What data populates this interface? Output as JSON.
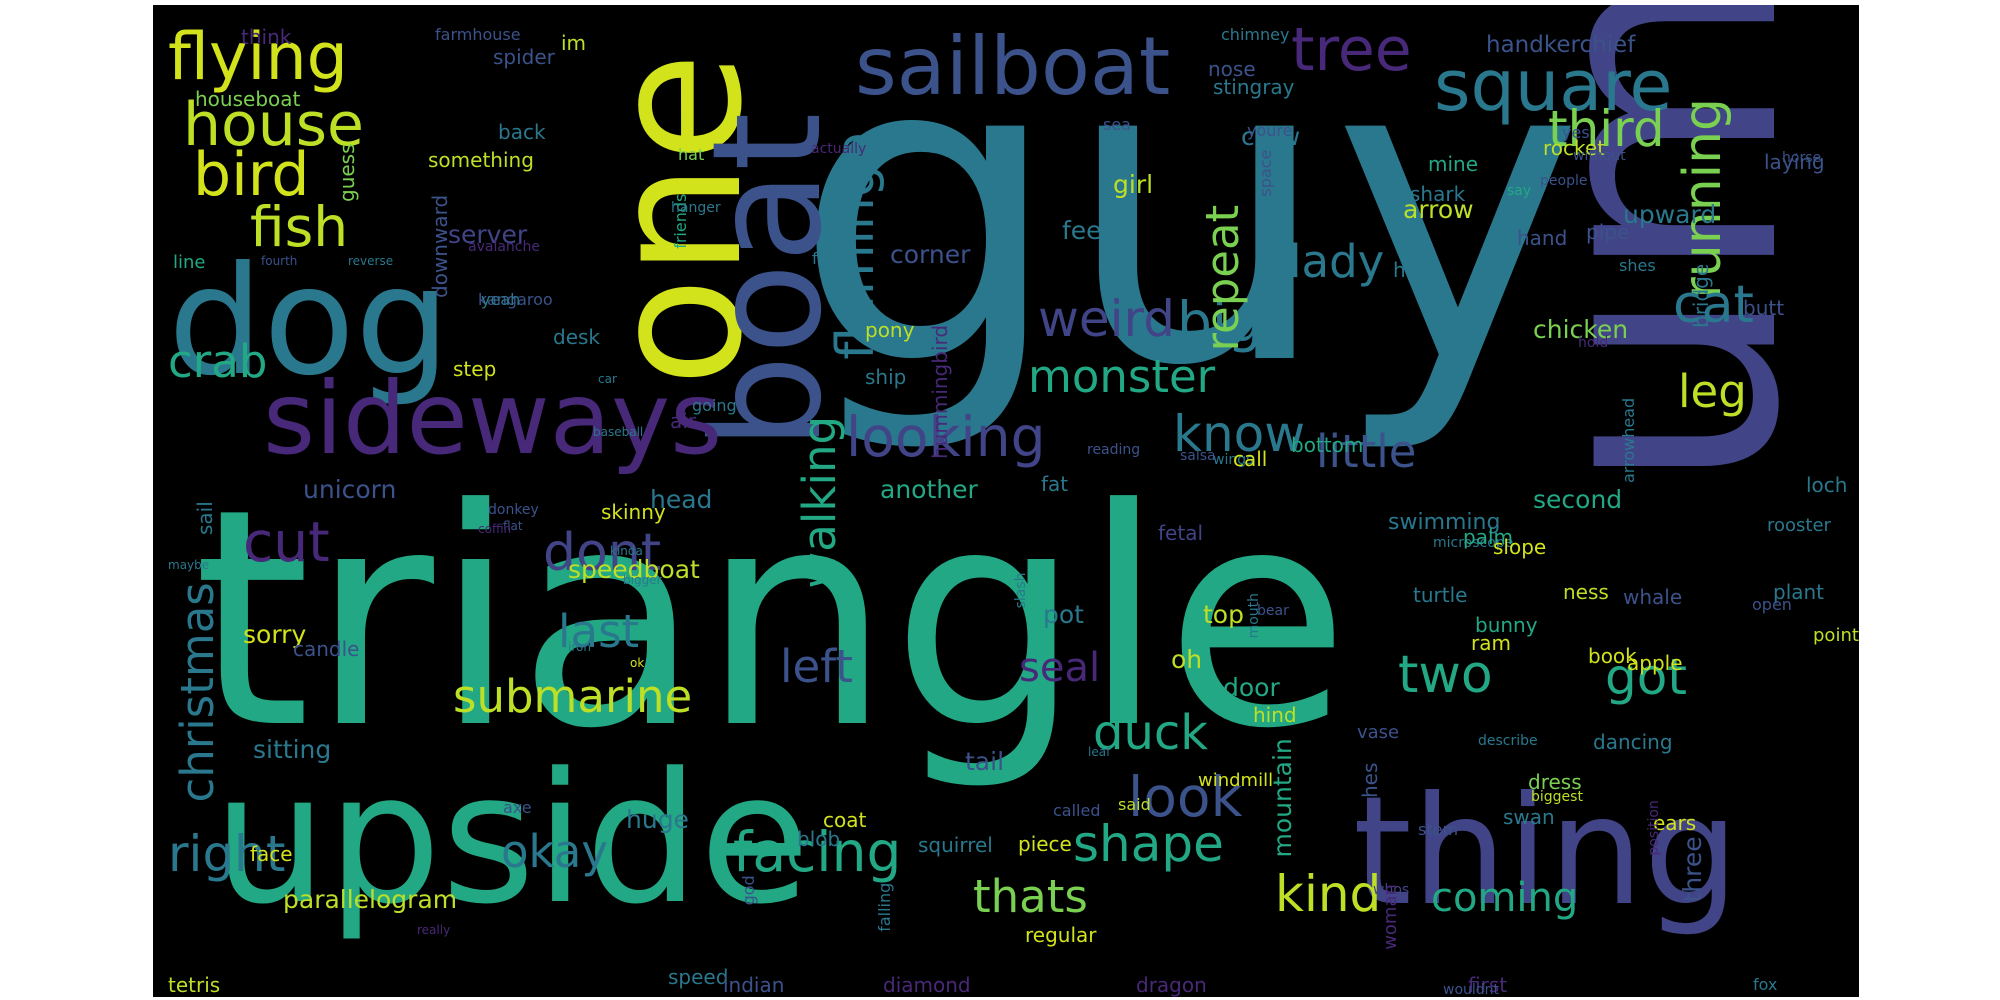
{
  "words": [
    {
      "text": "guy",
      "color": "#2a788e",
      "vertical": false
    },
    {
      "text": "triangle",
      "color": "#22a884",
      "vertical": false
    },
    {
      "text": "um",
      "color": "#414487",
      "vertical": true
    },
    {
      "text": "upside",
      "color": "#22a884",
      "vertical": false
    },
    {
      "text": "one",
      "color": "#d2e21b",
      "vertical": true
    },
    {
      "text": "thing",
      "color": "#414487",
      "vertical": false
    },
    {
      "text": "dog",
      "color": "#2a788e",
      "vertical": false
    },
    {
      "text": "boat",
      "color": "#3b528b",
      "vertical": true
    },
    {
      "text": "sideways",
      "color": "#482878",
      "vertical": false
    },
    {
      "text": "sailboat",
      "color": "#3b528b",
      "vertical": false
    },
    {
      "text": "square",
      "color": "#2a788e",
      "vertical": false
    },
    {
      "text": "flying",
      "color": "#d2e21b",
      "vertical": false
    },
    {
      "text": "house",
      "color": "#bddf26",
      "vertical": false
    },
    {
      "text": "bird",
      "color": "#d2e21b",
      "vertical": false
    },
    {
      "text": "fish",
      "color": "#bddf26",
      "vertical": false
    },
    {
      "text": "tree",
      "color": "#482878",
      "vertical": false
    },
    {
      "text": "third",
      "color": "#7ad151",
      "vertical": false
    },
    {
      "text": "running",
      "color": "#7ad151",
      "vertical": true
    },
    {
      "text": "flamingo",
      "color": "#2a788e",
      "vertical": true
    },
    {
      "text": "weird",
      "color": "#414487",
      "vertical": false
    },
    {
      "text": "big",
      "color": "#2a788e",
      "vertical": false
    },
    {
      "text": "cat",
      "color": "#2a788e",
      "vertical": false
    },
    {
      "text": "lady",
      "color": "#2a788e",
      "vertical": false
    },
    {
      "text": "repeat",
      "color": "#7ad151",
      "vertical": true
    },
    {
      "text": "crab",
      "color": "#22a884",
      "vertical": false
    },
    {
      "text": "monster",
      "color": "#22a884",
      "vertical": false
    },
    {
      "text": "leg",
      "color": "#bddf26",
      "vertical": false
    },
    {
      "text": "looking",
      "color": "#414487",
      "vertical": false
    },
    {
      "text": "know",
      "color": "#2a788e",
      "vertical": false
    },
    {
      "text": "little",
      "color": "#3b528b",
      "vertical": false
    },
    {
      "text": "cut",
      "color": "#482878",
      "vertical": false
    },
    {
      "text": "dont",
      "color": "#414487",
      "vertical": false
    },
    {
      "text": "walking",
      "color": "#22a884",
      "vertical": true
    },
    {
      "text": "last",
      "color": "#2a788e",
      "vertical": false
    },
    {
      "text": "submarine",
      "color": "#bddf26",
      "vertical": false
    },
    {
      "text": "left",
      "color": "#3b528b",
      "vertical": false
    },
    {
      "text": "seal",
      "color": "#482878",
      "vertical": false
    },
    {
      "text": "two",
      "color": "#22a884",
      "vertical": false
    },
    {
      "text": "got",
      "color": "#22a884",
      "vertical": false
    },
    {
      "text": "christmas",
      "color": "#2a788e",
      "vertical": true
    },
    {
      "text": "duck",
      "color": "#22a884",
      "vertical": false
    },
    {
      "text": "look",
      "color": "#3b528b",
      "vertical": false
    },
    {
      "text": "shape",
      "color": "#22a884",
      "vertical": false
    },
    {
      "text": "right",
      "color": "#2a788e",
      "vertical": false
    },
    {
      "text": "okay",
      "color": "#2a788e",
      "vertical": false
    },
    {
      "text": "facing",
      "color": "#22a884",
      "vertical": false
    },
    {
      "text": "thats",
      "color": "#7ad151",
      "vertical": false
    },
    {
      "text": "kind",
      "color": "#bddf26",
      "vertical": false
    },
    {
      "text": "coming",
      "color": "#22a884",
      "vertical": false
    },
    {
      "text": "parallelogram",
      "color": "#bddf26",
      "vertical": false
    },
    {
      "text": "mountain",
      "color": "#22a884",
      "vertical": true
    },
    {
      "text": "speedboat",
      "color": "#bddf26",
      "vertical": false
    },
    {
      "text": "sorry",
      "color": "#d2e21b",
      "vertical": false
    },
    {
      "text": "another",
      "color": "#22a884",
      "vertical": false
    },
    {
      "text": "second",
      "color": "#22a884",
      "vertical": false
    },
    {
      "text": "unicorn",
      "color": "#3b528b",
      "vertical": false
    },
    {
      "text": "head",
      "color": "#2a788e",
      "vertical": false
    },
    {
      "text": "chicken",
      "color": "#7ad151",
      "vertical": false
    },
    {
      "text": "upward",
      "color": "#2a788e",
      "vertical": false
    },
    {
      "text": "arrow",
      "color": "#bddf26",
      "vertical": false
    },
    {
      "text": "corner",
      "color": "#3b528b",
      "vertical": false
    },
    {
      "text": "server",
      "color": "#414487",
      "vertical": false
    },
    {
      "text": "girl",
      "color": "#bddf26",
      "vertical": false
    },
    {
      "text": "crow",
      "color": "#2a788e",
      "vertical": false
    },
    {
      "text": "handkerchief",
      "color": "#3b528b",
      "vertical": false
    },
    {
      "text": "houseboat",
      "color": "#7ad151",
      "vertical": false
    },
    {
      "text": "stingray",
      "color": "#2a788e",
      "vertical": false
    },
    {
      "text": "nose",
      "color": "#3b528b",
      "vertical": false
    },
    {
      "text": "back",
      "color": "#2a788e",
      "vertical": false
    },
    {
      "text": "spider",
      "color": "#3b528b",
      "vertical": false
    },
    {
      "text": "im",
      "color": "#bddf26",
      "vertical": false
    },
    {
      "text": "think",
      "color": "#482878",
      "vertical": false
    },
    {
      "text": "farmhouse",
      "color": "#3b528b",
      "vertical": false
    },
    {
      "text": "chimney",
      "color": "#2a788e",
      "vertical": false
    },
    {
      "text": "sea",
      "color": "#3b528b",
      "vertical": false
    },
    {
      "text": "hat",
      "color": "#7ad151",
      "vertical": false
    },
    {
      "text": "something",
      "color": "#bddf26",
      "vertical": false
    },
    {
      "text": "guess",
      "color": "#7ad151",
      "vertical": true
    },
    {
      "text": "downward",
      "color": "#3b528b",
      "vertical": true
    },
    {
      "text": "line",
      "color": "#22a884",
      "vertical": false
    },
    {
      "text": "fourth",
      "color": "#3b528b",
      "vertical": false
    },
    {
      "text": "reverse",
      "color": "#2a788e",
      "vertical": false
    },
    {
      "text": "avalanche",
      "color": "#482878",
      "vertical": false
    },
    {
      "text": "kangaroo",
      "color": "#3b528b",
      "vertical": false
    },
    {
      "text": "yeah",
      "color": "#2a788e",
      "vertical": false
    },
    {
      "text": "desk",
      "color": "#2a788e",
      "vertical": false
    },
    {
      "text": "step",
      "color": "#d2e21b",
      "vertical": false
    },
    {
      "text": "car",
      "color": "#2a788e",
      "vertical": false
    },
    {
      "text": "baseball",
      "color": "#2a788e",
      "vertical": false
    },
    {
      "text": "air",
      "color": "#482878",
      "vertical": false
    },
    {
      "text": "pony",
      "color": "#bddf26",
      "vertical": false
    },
    {
      "text": "ship",
      "color": "#2a788e",
      "vertical": false
    },
    {
      "text": "hummingbird",
      "color": "#482878",
      "vertical": true
    },
    {
      "text": "sail",
      "color": "#2a788e",
      "vertical": true
    },
    {
      "text": "donkey",
      "color": "#3b528b",
      "vertical": false
    },
    {
      "text": "skinny",
      "color": "#d2e21b",
      "vertical": false
    },
    {
      "text": "flat",
      "color": "#3b528b",
      "vertical": false
    },
    {
      "text": "coffin",
      "color": "#482878",
      "vertical": false
    },
    {
      "text": "kinda",
      "color": "#2a788e",
      "vertical": false
    },
    {
      "text": "maybe",
      "color": "#2a788e",
      "vertical": false
    },
    {
      "text": "bigger",
      "color": "#2a788e",
      "vertical": false
    },
    {
      "text": "candle",
      "color": "#3b528b",
      "vertical": false
    },
    {
      "text": "iron",
      "color": "#2a788e",
      "vertical": false
    },
    {
      "text": "ok",
      "color": "#d2e21b",
      "vertical": false
    },
    {
      "text": "pot",
      "color": "#2a788e",
      "vertical": false
    },
    {
      "text": "oh",
      "color": "#bddf26",
      "vertical": false
    },
    {
      "text": "top",
      "color": "#bddf26",
      "vertical": false
    },
    {
      "text": "door",
      "color": "#22a884",
      "vertical": false
    },
    {
      "text": "sitting",
      "color": "#2a788e",
      "vertical": false
    },
    {
      "text": "tail",
      "color": "#3b528b",
      "vertical": false
    },
    {
      "text": "hind",
      "color": "#bddf26",
      "vertical": false
    },
    {
      "text": "leaf",
      "color": "#2a788e",
      "vertical": false
    },
    {
      "text": "windmill",
      "color": "#d2e21b",
      "vertical": false
    },
    {
      "text": "hes",
      "color": "#3b528b",
      "vertical": true
    },
    {
      "text": "dancing",
      "color": "#2a788e",
      "vertical": false
    },
    {
      "text": "dress",
      "color": "#7ad151",
      "vertical": false
    },
    {
      "text": "swan",
      "color": "#2a788e",
      "vertical": false
    },
    {
      "text": "ears",
      "color": "#d2e21b",
      "vertical": false
    },
    {
      "text": "three",
      "color": "#3b528b",
      "vertical": true
    },
    {
      "text": "huge",
      "color": "#2a788e",
      "vertical": false
    },
    {
      "text": "coat",
      "color": "#d2e21b",
      "vertical": false
    },
    {
      "text": "blob",
      "color": "#2a788e",
      "vertical": false
    },
    {
      "text": "squirrel",
      "color": "#2a788e",
      "vertical": false
    },
    {
      "text": "piece",
      "color": "#d2e21b",
      "vertical": false
    },
    {
      "text": "face",
      "color": "#d2e21b",
      "vertical": false
    },
    {
      "text": "axe",
      "color": "#3b528b",
      "vertical": false
    },
    {
      "text": "called",
      "color": "#3b528b",
      "vertical": false
    },
    {
      "text": "said",
      "color": "#bddf26",
      "vertical": false
    },
    {
      "text": "stem",
      "color": "#3b528b",
      "vertical": false
    },
    {
      "text": "falling",
      "color": "#2a788e",
      "vertical": true
    },
    {
      "text": "god",
      "color": "#3b528b",
      "vertical": true
    },
    {
      "text": "regular",
      "color": "#d2e21b",
      "vertical": false
    },
    {
      "text": "really",
      "color": "#482878",
      "vertical": false
    },
    {
      "text": "speed",
      "color": "#2a788e",
      "vertical": false
    },
    {
      "text": "tetris",
      "color": "#bddf26",
      "vertical": false
    },
    {
      "text": "indian",
      "color": "#3b528b",
      "vertical": false
    },
    {
      "text": "diamond",
      "color": "#482878",
      "vertical": false
    },
    {
      "text": "dragon",
      "color": "#482878",
      "vertical": false
    },
    {
      "text": "first",
      "color": "#482878",
      "vertical": false
    },
    {
      "text": "fox",
      "color": "#2a788e",
      "vertical": false
    },
    {
      "text": "wouldnt",
      "color": "#3b528b",
      "vertical": false
    },
    {
      "text": "whos",
      "color": "#414487",
      "vertical": false
    },
    {
      "text": "woman",
      "color": "#482878",
      "vertical": true
    },
    {
      "text": "position",
      "color": "#482878",
      "vertical": true
    },
    {
      "text": "biggest",
      "color": "#bddf26",
      "vertical": false
    },
    {
      "text": "describe",
      "color": "#2a788e",
      "vertical": false
    },
    {
      "text": "vase",
      "color": "#3b528b",
      "vertical": false
    },
    {
      "text": "mouth",
      "color": "#2a788e",
      "vertical": true
    },
    {
      "text": "bear",
      "color": "#3b528b",
      "vertical": false
    },
    {
      "text": "slash",
      "color": "#2a788e",
      "vertical": true
    },
    {
      "text": "microscope",
      "color": "#2a788e",
      "vertical": false
    },
    {
      "text": "wings",
      "color": "#2a788e",
      "vertical": false
    },
    {
      "text": "reading",
      "color": "#3b528b",
      "vertical": false
    },
    {
      "text": "salsa",
      "color": "#3b528b",
      "vertical": false
    },
    {
      "text": "fetal",
      "color": "#414487",
      "vertical": false
    },
    {
      "text": "fat",
      "color": "#2a788e",
      "vertical": false
    },
    {
      "text": "call",
      "color": "#d2e21b",
      "vertical": false
    },
    {
      "text": "bottom",
      "color": "#22a884",
      "vertical": false
    },
    {
      "text": "swimming",
      "color": "#2a788e",
      "vertical": false
    },
    {
      "text": "palm",
      "color": "#22a884",
      "vertical": false
    },
    {
      "text": "ness",
      "color": "#bddf26",
      "vertical": false
    },
    {
      "text": "turtle",
      "color": "#2a788e",
      "vertical": false
    },
    {
      "text": "ram",
      "color": "#d2e21b",
      "vertical": false
    },
    {
      "text": "slope",
      "color": "#d2e21b",
      "vertical": false
    },
    {
      "text": "bunny",
      "color": "#22a884",
      "vertical": false
    },
    {
      "text": "book",
      "color": "#d2e21b",
      "vertical": false
    },
    {
      "text": "apple",
      "color": "#d2e21b",
      "vertical": false
    },
    {
      "text": "whale",
      "color": "#3b528b",
      "vertical": false
    },
    {
      "text": "plant",
      "color": "#2a788e",
      "vertical": false
    },
    {
      "text": "rooster",
      "color": "#2a788e",
      "vertical": false
    },
    {
      "text": "pointing",
      "color": "#bddf26",
      "vertical": false
    },
    {
      "text": "loch",
      "color": "#2a788e",
      "vertical": false
    },
    {
      "text": "open",
      "color": "#3b528b",
      "vertical": false
    },
    {
      "text": "arrowhead",
      "color": "#2a788e",
      "vertical": true
    },
    {
      "text": "hold",
      "color": "#482878",
      "vertical": false
    },
    {
      "text": "butt",
      "color": "#3b528b",
      "vertical": false
    },
    {
      "text": "shes",
      "color": "#2a788e",
      "vertical": false
    },
    {
      "text": "bridge",
      "color": "#2a788e",
      "vertical": true
    },
    {
      "text": "pipe",
      "color": "#3b528b",
      "vertical": false
    },
    {
      "text": "half",
      "color": "#2a788e",
      "vertical": false
    },
    {
      "text": "hand",
      "color": "#3b528b",
      "vertical": false
    },
    {
      "text": "laying",
      "color": "#3b528b",
      "vertical": false
    },
    {
      "text": "rocket",
      "color": "#bddf26",
      "vertical": false
    },
    {
      "text": "people",
      "color": "#3b528b",
      "vertical": false
    },
    {
      "text": "without",
      "color": "#3b528b",
      "vertical": false
    },
    {
      "text": "shark",
      "color": "#2a788e",
      "vertical": false
    },
    {
      "text": "say",
      "color": "#22a884",
      "vertical": false
    },
    {
      "text": "mine",
      "color": "#22a884",
      "vertical": false
    },
    {
      "text": "yes",
      "color": "#3b528b",
      "vertical": false
    },
    {
      "text": "horse",
      "color": "#3b528b",
      "vertical": false
    },
    {
      "text": "space",
      "color": "#3b528b",
      "vertical": true
    },
    {
      "text": "youre",
      "color": "#3b528b",
      "vertical": false
    },
    {
      "text": "actually",
      "color": "#482878",
      "vertical": false
    },
    {
      "text": "friends",
      "color": "#22a884",
      "vertical": true
    },
    {
      "text": "hanger",
      "color": "#2a788e",
      "vertical": false
    },
    {
      "text": "feet",
      "color": "#2a788e",
      "vertical": false
    },
    {
      "text": "four",
      "color": "#2a788e",
      "vertical": false
    },
    {
      "text": "going",
      "color": "#2a788e",
      "vertical": false
    },
    {
      "text": "peeing",
      "color": "#bddf26",
      "vertical": true
    },
    {
      "text": "side",
      "color": "#2a788e",
      "vertical": false
    }
  ]
}
